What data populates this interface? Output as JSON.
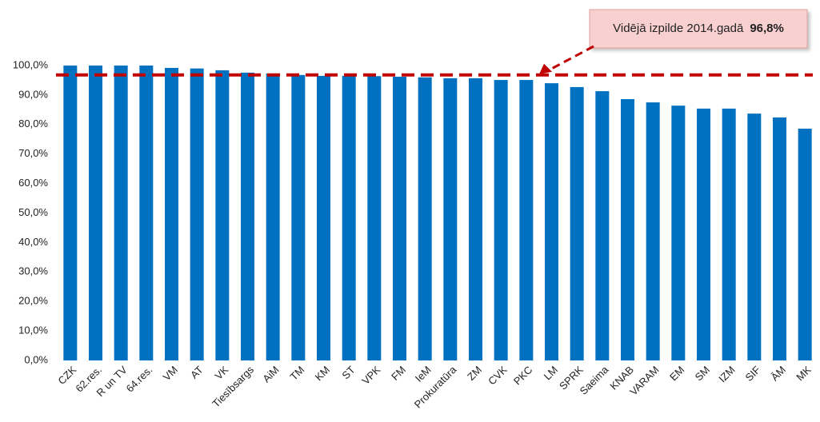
{
  "chart_data": {
    "type": "bar",
    "categories": [
      "CZK",
      "62.res.",
      "R un TV",
      "64.res.",
      "VM",
      "AT",
      "VK",
      "Tiesībsargs",
      "AiM",
      "TM",
      "KM",
      "ST",
      "VPK",
      "FM",
      "IeM",
      "Prokuratūra",
      "ZM",
      "CVK",
      "PKC",
      "LM",
      "SPRK",
      "Saeima",
      "KNAB",
      "VARAM",
      "EM",
      "SM",
      "IZM",
      "SIF",
      "ĀM",
      "MK"
    ],
    "values": [
      100,
      100,
      100,
      100,
      99.2,
      99,
      98.4,
      97.6,
      97.3,
      96.8,
      96.5,
      96.5,
      96.4,
      96.2,
      96,
      95.7,
      95.7,
      95.1,
      95.1,
      94,
      92.7,
      91.3,
      88.6,
      87.5,
      86.4,
      85.4,
      85.4,
      83.7,
      82.4,
      78.6
    ],
    "color": "#0070c0",
    "ylim": [
      0,
      100
    ],
    "yticks": [
      {
        "value": 0,
        "label": "0,0%"
      },
      {
        "value": 10,
        "label": "10,0%"
      },
      {
        "value": 20,
        "label": "20,0%"
      },
      {
        "value": 30,
        "label": "30,0%"
      },
      {
        "value": 40,
        "label": "40,0%"
      },
      {
        "value": 50,
        "label": "50,0%"
      },
      {
        "value": 60,
        "label": "60,0%"
      },
      {
        "value": 70,
        "label": "70,0%"
      },
      {
        "value": 80,
        "label": "80,0%"
      },
      {
        "value": 90,
        "label": "90,0%"
      },
      {
        "value": 100,
        "label": "100,0%"
      }
    ],
    "grid": false,
    "reference_line": {
      "value": 96.8,
      "label": "96,8%",
      "color": "#c00000"
    },
    "annotation": "Vidējā izpilde 2014.gadā"
  }
}
